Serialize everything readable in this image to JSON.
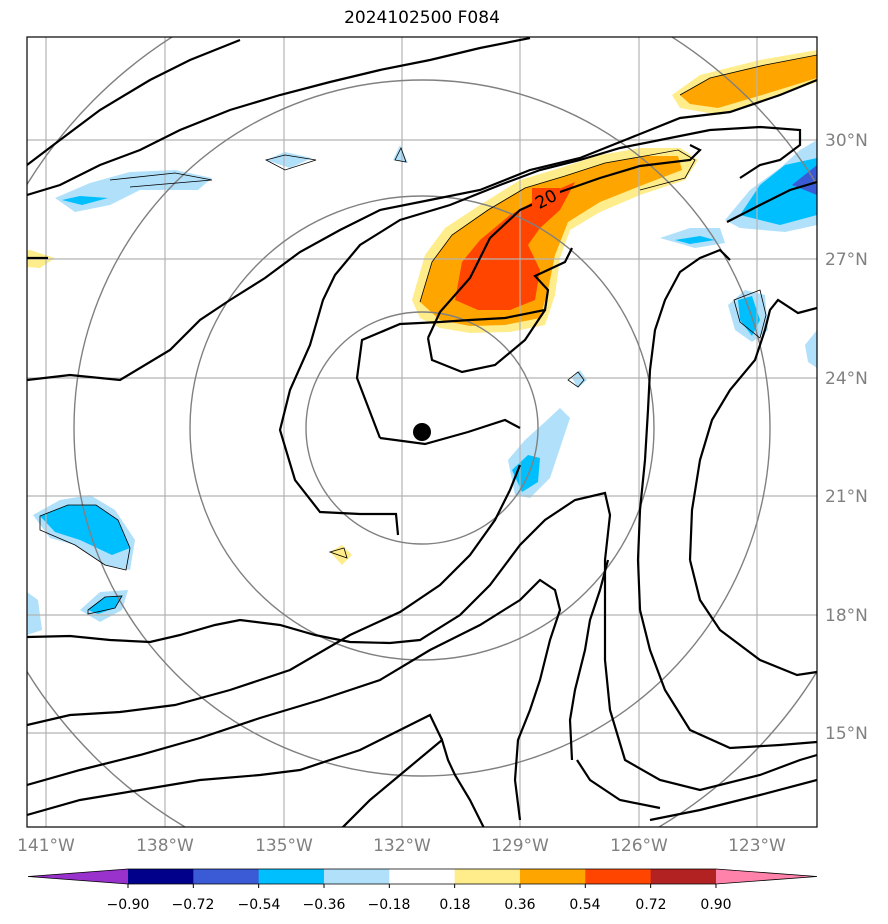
{
  "title": "2024102500 F084",
  "lon_labels": [
    "141°W",
    "138°W",
    "135°W",
    "132°W",
    "129°W",
    "126°W",
    "123°W"
  ],
  "lat_labels": [
    "30°N",
    "27°N",
    "24°N",
    "21°N",
    "18°N",
    "15°N"
  ],
  "contour_label": "20",
  "colorbar": {
    "ticks": [
      "−0.90",
      "−0.72",
      "−0.54",
      "−0.36",
      "−0.18",
      "0.18",
      "0.36",
      "0.54",
      "0.72",
      "0.90"
    ],
    "colors": [
      "#9932cc",
      "#00008b",
      "#3b5bd6",
      "#00bfff",
      "#b0e0fa",
      "#ffffff",
      "#ffec8b",
      "#ffa500",
      "#ff4500",
      "#b22222",
      "#ff82ab"
    ]
  },
  "center_marker": "storm-center"
}
